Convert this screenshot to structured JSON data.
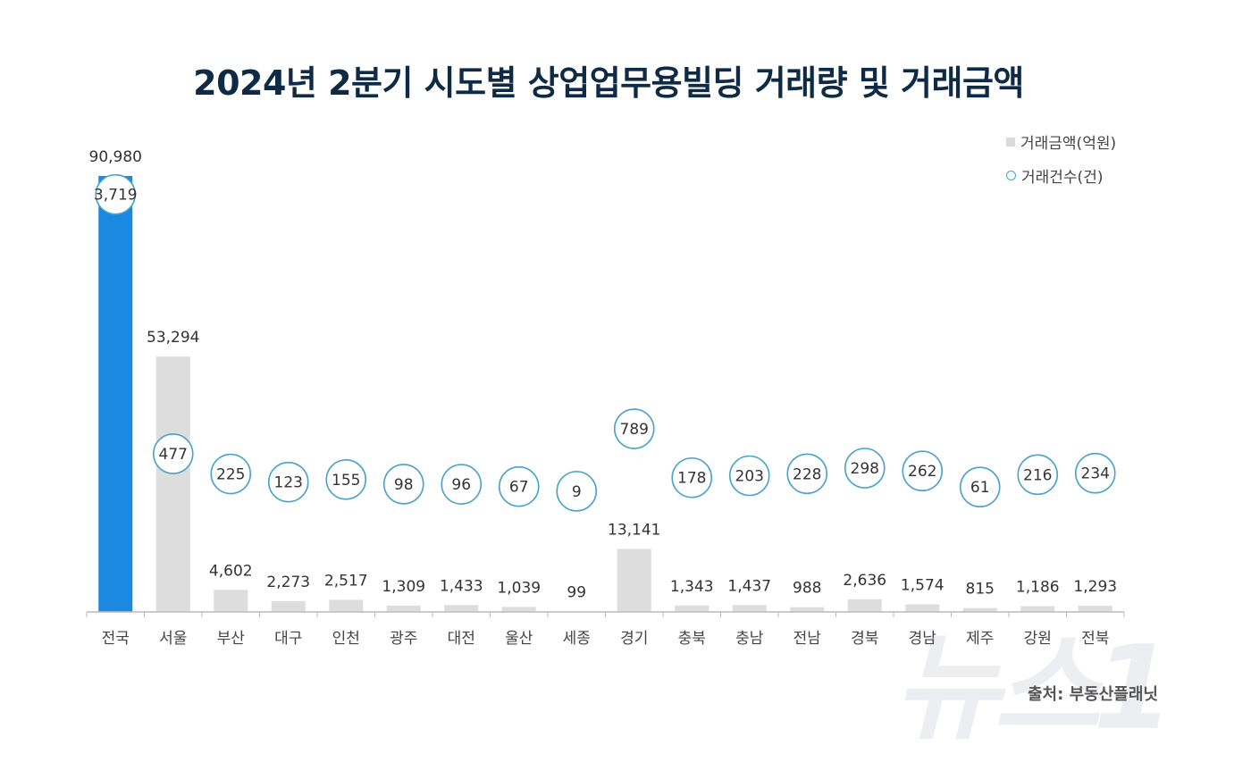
{
  "chart_data": {
    "type": "bar",
    "title": "2024년 2분기 시도별 상업업무용빌딩 거래량 및 거래금액",
    "categories": [
      "전국",
      "서울",
      "부산",
      "대구",
      "인천",
      "광주",
      "대전",
      "울산",
      "세종",
      "경기",
      "충북",
      "충남",
      "전남",
      "경북",
      "경남",
      "제주",
      "강원",
      "전북"
    ],
    "series": [
      {
        "name": "거래금액(억원)",
        "type": "bar",
        "values": [
          90980,
          53294,
          4602,
          2273,
          2517,
          1309,
          1433,
          1039,
          99,
          13141,
          1343,
          1437,
          988,
          2636,
          1574,
          815,
          1186,
          1293
        ],
        "labels": [
          "90,980",
          "53,294",
          "4,602",
          "2,273",
          "2,517",
          "1,309",
          "1,433",
          "1,039",
          "99",
          "13,141",
          "1,343",
          "1,437",
          "988",
          "2,636",
          "1,574",
          "815",
          "1,186",
          "1,293"
        ]
      },
      {
        "name": "거래건수(건)",
        "type": "scatter",
        "values": [
          3719,
          477,
          225,
          123,
          155,
          98,
          96,
          67,
          9,
          789,
          178,
          203,
          228,
          298,
          262,
          61,
          216,
          234
        ],
        "labels": [
          "3,719",
          "477",
          "225",
          "123",
          "155",
          "98",
          "96",
          "67",
          "9",
          "789",
          "178",
          "203",
          "228",
          "298",
          "262",
          "61",
          "216",
          "234"
        ]
      }
    ],
    "ylim": [
      0,
      90980
    ],
    "y2lim": [
      -1500,
      3950
    ],
    "grid": false,
    "legend_position": "top-right",
    "colors": {
      "highlight_bar": "#1b88e2",
      "bar": "#dddddd",
      "circle": "#4aa3c9",
      "title": "#0e2a44"
    }
  },
  "source": "출처: 부동산플래닛",
  "watermark": "뉴스1"
}
